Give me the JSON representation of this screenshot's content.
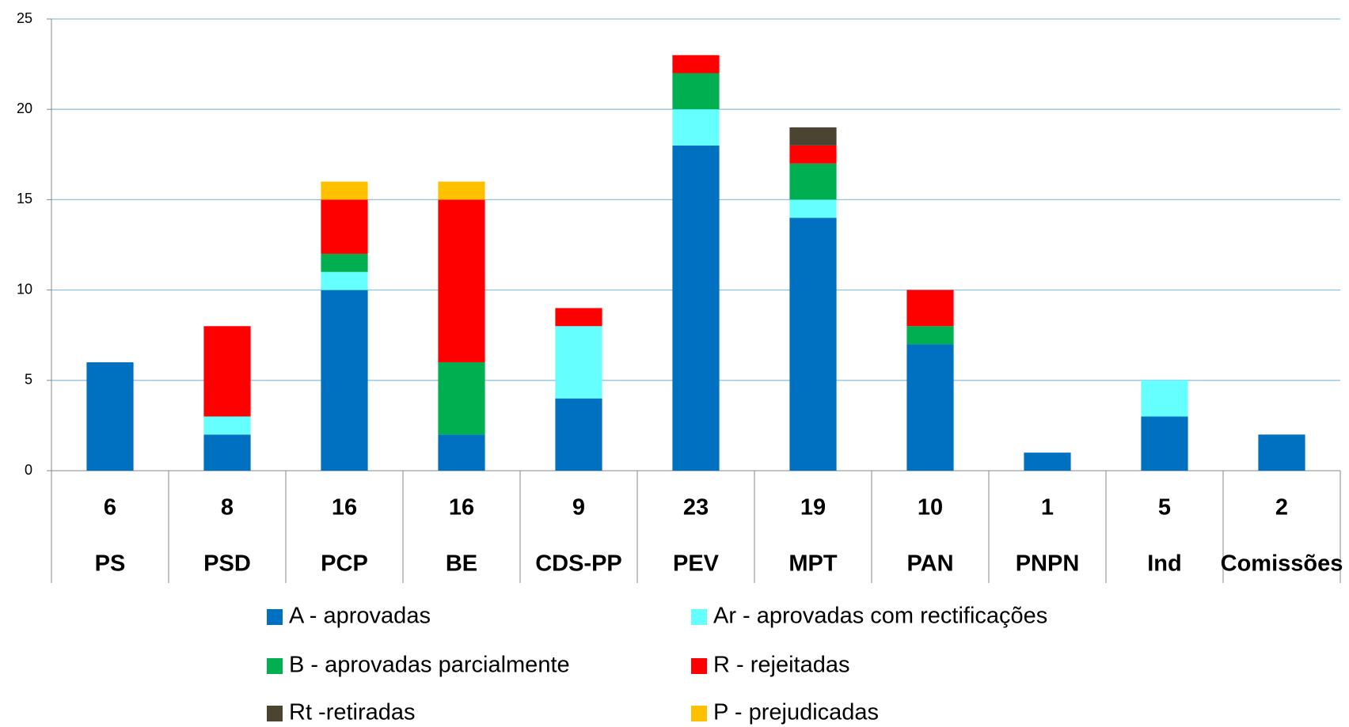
{
  "chart_data": {
    "type": "bar",
    "stacked": true,
    "categories": [
      "PS",
      "PSD",
      "PCP",
      "BE",
      "CDS-PP",
      "PEV",
      "MPT",
      "PAN",
      "PNPN",
      "Ind",
      "Comissões"
    ],
    "totals": [
      6,
      8,
      16,
      16,
      9,
      23,
      19,
      10,
      1,
      5,
      2
    ],
    "series": [
      {
        "name": "A - aprovadas",
        "color": "#0070c0",
        "values": [
          6,
          2,
          10,
          2,
          4,
          18,
          14,
          7,
          1,
          3,
          2
        ]
      },
      {
        "name": "Ar - aprovadas com rectificações",
        "color": "#66ffff",
        "values": [
          0,
          1,
          1,
          0,
          4,
          2,
          1,
          0,
          0,
          2,
          0
        ]
      },
      {
        "name": "B - aprovadas parcialmente",
        "color": "#00b050",
        "values": [
          0,
          0,
          1,
          4,
          0,
          2,
          2,
          1,
          0,
          0,
          0
        ]
      },
      {
        "name": "R - rejeitadas",
        "color": "#ff0000",
        "values": [
          0,
          5,
          3,
          9,
          1,
          1,
          1,
          2,
          0,
          0,
          0
        ]
      },
      {
        "name": "Rt -retiradas",
        "color": "#4a4430",
        "values": [
          0,
          0,
          0,
          0,
          0,
          0,
          1,
          0,
          0,
          0,
          0
        ]
      },
      {
        "name": "P - prejudicadas",
        "color": "#ffc000",
        "values": [
          0,
          0,
          1,
          1,
          0,
          0,
          0,
          0,
          0,
          0,
          0
        ]
      }
    ],
    "ylim": [
      0,
      25
    ],
    "yticks": [
      0,
      5,
      10,
      15,
      20,
      25
    ],
    "grid": true
  }
}
